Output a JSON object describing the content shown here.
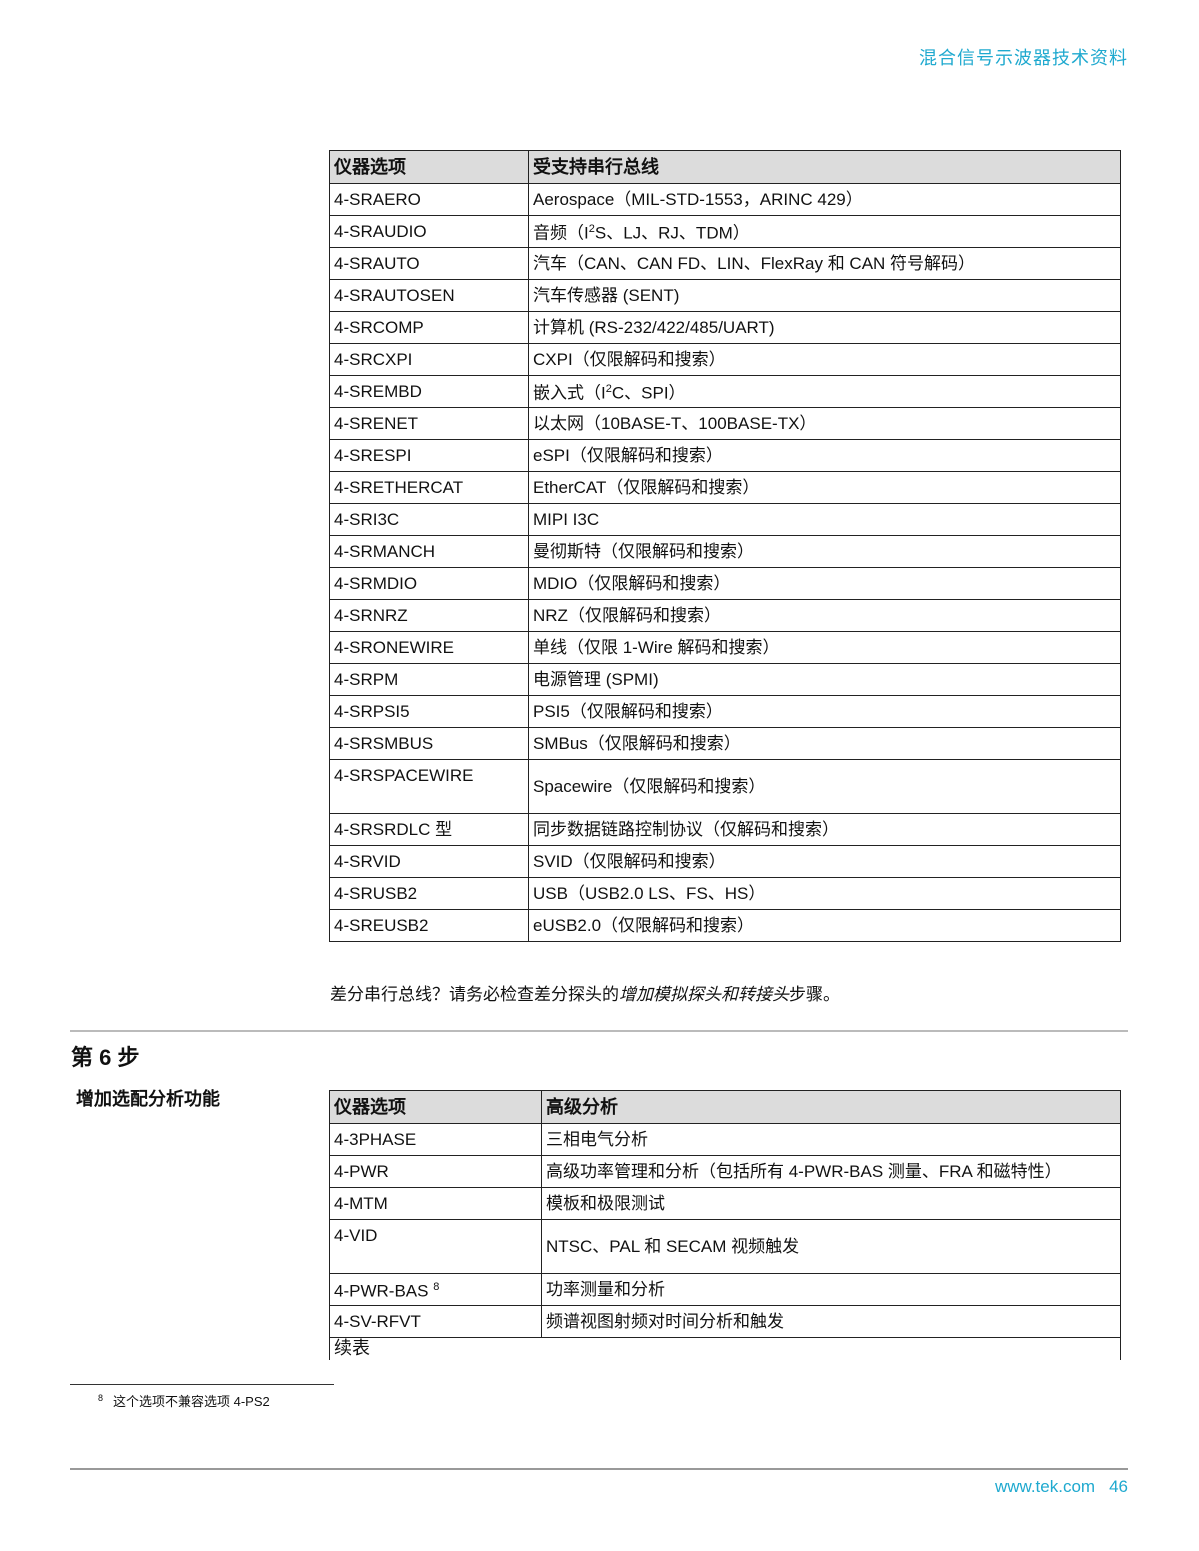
{
  "header": {
    "title": "混合信号示波器技术资料"
  },
  "table1": {
    "headers": [
      "仪器选项",
      "受支持串行总线"
    ],
    "rows": [
      {
        "option": "4-SRAERO",
        "pre": "Aerospace（MIL-STD-1553，ARINC 429）"
      },
      {
        "option": "4-SRAUDIO",
        "pre": "音频（I",
        "sup": "2",
        "post": "S、LJ、RJ、TDM）"
      },
      {
        "option": "4-SRAUTO",
        "pre": "汽车（CAN、CAN FD、LIN、FlexRay 和 CAN 符号解码）"
      },
      {
        "option": "4-SRAUTOSEN",
        "pre": "汽车传感器 (SENT)"
      },
      {
        "option": "4-SRCOMP",
        "pre": "计算机 (RS-232/422/485/UART)"
      },
      {
        "option": "4-SRCXPI",
        "pre": "CXPI（仅限解码和搜索）"
      },
      {
        "option": "4-SREMBD",
        "pre": "嵌入式（I",
        "sup": "2",
        "post": "C、SPI）"
      },
      {
        "option": "4-SRENET",
        "pre": "以太网（10BASE-T、100BASE-TX）"
      },
      {
        "option": "4-SRESPI",
        "pre": "eSPI（仅限解码和搜索）"
      },
      {
        "option": "4-SRETHERCAT",
        "pre": "EtherCAT（仅限解码和搜索）"
      },
      {
        "option": "4-SRI3C",
        "pre": "MIPI I3C"
      },
      {
        "option": "4-SRMANCH",
        "pre": "曼彻斯特（仅限解码和搜索）"
      },
      {
        "option": "4-SRMDIO",
        "pre": "MDIO（仅限解码和搜索）"
      },
      {
        "option": "4-SRNRZ",
        "pre": "NRZ（仅限解码和搜索）"
      },
      {
        "option": "4-SRONEWIRE",
        "pre": "单线（仅限 1-Wire 解码和搜索）"
      },
      {
        "option": "4-SRPM",
        "pre": "电源管理 (SPMI)"
      },
      {
        "option": "4-SRPSI5",
        "pre": "PSI5（仅限解码和搜索）"
      },
      {
        "option": "4-SRSMBUS",
        "pre": "SMBus（仅限解码和搜索）"
      },
      {
        "option": "4-SRSPACEWIRE",
        "pre": "Spacewire（仅限解码和搜索）",
        "tall": true
      },
      {
        "option": "4-SRSRDLC 型",
        "pre": "同步数据链路控制协议（仅解码和搜索）"
      },
      {
        "option": "4-SRVID",
        "pre": "SVID（仅限解码和搜索）"
      },
      {
        "option": "4-SRUSB2",
        "pre": "USB（USB2.0 LS、FS、HS）"
      },
      {
        "option": "4-SREUSB2",
        "pre": "eUSB2.0（仅限解码和搜索）"
      }
    ]
  },
  "note": {
    "pre": "差分串行总线？请务必检查差分探头的",
    "italic": "增加模拟探头和转接头",
    "post": "步骤。"
  },
  "step": {
    "title": "第 6 步",
    "subtitle": "增加选配分析功能"
  },
  "table2": {
    "headers": [
      "仪器选项",
      "高级分析"
    ],
    "rows": [
      {
        "option": "4-3PHASE",
        "pre": "三相电气分析"
      },
      {
        "option": "4-PWR",
        "pre": "高级功率管理和分析（包括所有 4-PWR-BAS 测量、FRA 和磁特性）"
      },
      {
        "option": "4-MTM",
        "pre": "模板和极限测试"
      },
      {
        "option": "4-VID",
        "pre": "NTSC、PAL 和 SECAM 视频触发",
        "tall": true
      },
      {
        "option": "4-PWR-BAS",
        "option_sup": "8",
        "pre": "功率测量和分析"
      },
      {
        "option": "4-SV-RFVT",
        "pre": "频谱视图射频对时间分析和触发"
      }
    ],
    "continued": "续表"
  },
  "footnote": {
    "mark": "8",
    "text": "这个选项不兼容选项 4-PS2"
  },
  "footer": {
    "url": "www.tek.com",
    "page": "46"
  },
  "colors": {
    "accent": "#1fa9cf",
    "header_bg": "#dcdcdc"
  }
}
